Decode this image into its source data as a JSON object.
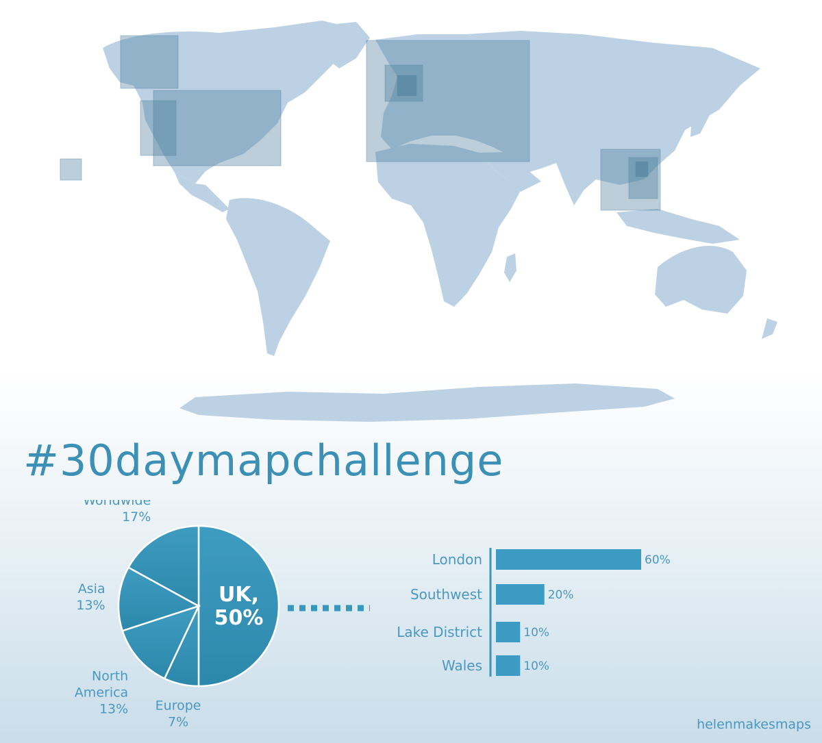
{
  "title": "#30daymapchallenge",
  "credit": "helenmakesmaps",
  "colors": {
    "land": "#bcd2e4",
    "highlight_box": "#4d7f9c",
    "pie_fill": "#3a97bb",
    "bar_fill": "#3c9bc2",
    "text": "#4a98bf"
  },
  "chart_data": [
    {
      "type": "pie",
      "title": "",
      "slices": [
        {
          "label": "UK,",
          "value": 50,
          "value_label": "50%",
          "label_lines": [
            "UK,",
            "50%"
          ]
        },
        {
          "label": "Europe",
          "value": 7,
          "value_label": "7%",
          "label_lines": [
            "Europe",
            "7%"
          ]
        },
        {
          "label": "North America",
          "value": 13,
          "value_label": "13%",
          "label_lines": [
            "North",
            "America",
            "13%"
          ]
        },
        {
          "label": "Asia",
          "value": 13,
          "value_label": "13%",
          "label_lines": [
            "Asia",
            "13%"
          ]
        },
        {
          "label": "Worldwide",
          "value": 17,
          "value_label": "17%",
          "label_lines": [
            "Worldwide",
            "17%"
          ]
        }
      ]
    },
    {
      "type": "bar",
      "orientation": "horizontal",
      "title": "",
      "categories": [
        "London",
        "Southwest",
        "Lake District",
        "Wales"
      ],
      "values": [
        60,
        20,
        10,
        10
      ],
      "value_labels": [
        "60%",
        "20%",
        "10%",
        "10%"
      ],
      "xlim": [
        0,
        60
      ]
    }
  ]
}
